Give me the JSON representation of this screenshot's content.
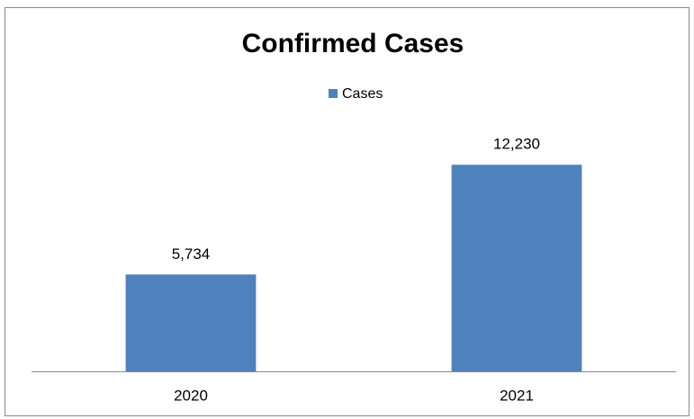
{
  "chart_data": {
    "type": "bar",
    "title": "Confirmed Cases",
    "categories": [
      "2020",
      "2021"
    ],
    "series": [
      {
        "name": "Cases",
        "color": "#4f81bd",
        "values": [
          5734,
          12230
        ]
      }
    ],
    "value_labels": [
      "5,734",
      "12,230"
    ],
    "ylim": [
      0,
      14000
    ]
  }
}
